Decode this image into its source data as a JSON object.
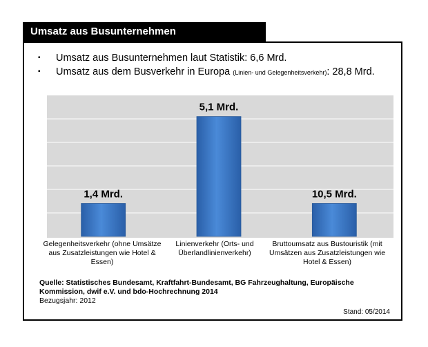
{
  "header": {
    "title": "Umsatz aus Busunternehmen"
  },
  "bullets": [
    {
      "mark": "▪",
      "text": "Umsatz aus Busunternehmen laut Statistik: 6,6 Mrd."
    },
    {
      "mark": "▪",
      "text_before": "Umsatz aus dem Busverkehr in Europa ",
      "small": "(Linien- und Gelegenheitsverkehr)",
      "text_after": ": 28,8 Mrd."
    }
  ],
  "chart_data": {
    "type": "bar",
    "categories": [
      "Gelegenheitsverkehr (ohne Umsätze aus Zusatzleistungen wie Hotel & Essen)",
      "Linienverkehr (Orts- und Überlandlinienverkehr)",
      "Bruttoumsatz aus Bustouristik (mit Umsätzen aus Zusatzleistungen wie Hotel & Essen)"
    ],
    "values": [
      1.4,
      5.1,
      10.5
    ],
    "bar_heights_relative": [
      1.4,
      5.1,
      1.4
    ],
    "data_labels": [
      "1,4 Mrd.",
      "5,1 Mrd.",
      "10,5 Mrd."
    ],
    "title": "",
    "xlabel": "",
    "ylabel": "",
    "ylim": [
      0,
      6
    ],
    "grid": true,
    "bar_color": "#3a76c4",
    "plot_background": "#d9d9d9"
  },
  "footer": {
    "source_bold": "Quelle: Statistisches Bundesamt, Kraftfahrt-Bundesamt, BG Fahrzeughaltung, Europäische Kommission, dwif e.V. und bdo-Hochrechnung 2014",
    "reference_year": "Bezugsjahr: 2012",
    "stand": "Stand: 05/2014"
  }
}
